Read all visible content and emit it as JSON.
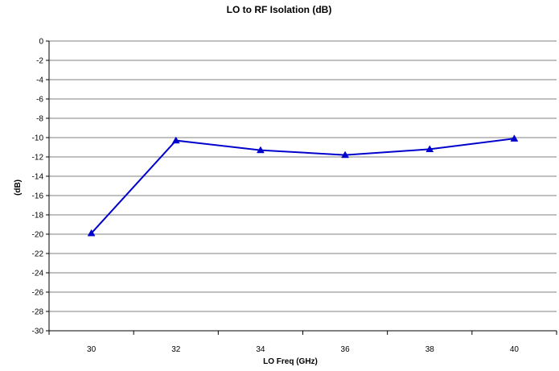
{
  "chart_data": {
    "type": "line",
    "title": "LO to RF Isolation (dB)",
    "xlabel": "LO Freq (GHz)",
    "ylabel": "(dB)",
    "x": [
      30,
      32,
      34,
      36,
      38,
      40
    ],
    "series": [
      {
        "values": [
          -19.9,
          -10.3,
          -11.3,
          -11.8,
          -11.2,
          -10.1
        ],
        "color": "#0000cc",
        "marker": "triangle"
      }
    ],
    "xticks": [
      "30",
      "32",
      "34",
      "36",
      "38",
      "40"
    ],
    "yticks": [
      "0",
      "-2",
      "-4",
      "-6",
      "-8",
      "-10",
      "-12",
      "-14",
      "-16",
      "-18",
      "-20",
      "-22",
      "-24",
      "-26",
      "-28",
      "-30"
    ],
    "ylim": [
      -30,
      0
    ],
    "grid": true,
    "legend": "none",
    "colors": {
      "grid": "#808080",
      "axis": "#000000",
      "line": "#0000cc",
      "marker": "#0000cc"
    }
  }
}
